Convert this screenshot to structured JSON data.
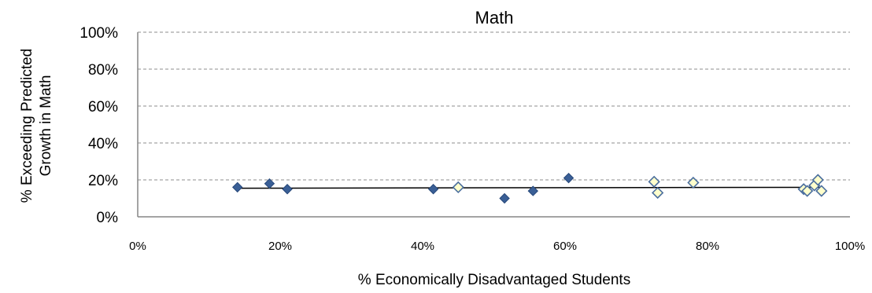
{
  "chart_data": {
    "type": "scatter",
    "title": "Math",
    "xlabel": "% Economically Disadvantaged Students",
    "ylabel_lines": [
      "% Exceeding Predicted",
      "Growth in Math"
    ],
    "xlim": [
      0,
      100
    ],
    "ylim": [
      0,
      100
    ],
    "x_ticks": [
      0,
      20,
      40,
      60,
      80,
      100
    ],
    "x_tick_labels": [
      "0%",
      "20%",
      "40%",
      "60%",
      "80%",
      "100%"
    ],
    "y_ticks": [
      0,
      20,
      40,
      60,
      80,
      100
    ],
    "y_tick_labels": [
      "0%",
      "20%",
      "40%",
      "60%",
      "80%",
      "100%"
    ],
    "grid": "horizontal-dashed",
    "colors": {
      "filled_marker": "#3a5f96",
      "filled_marker_edge": "#27487a",
      "hollow_marker_fill": "#ffffcc",
      "hollow_marker_edge": "#4a6e9e",
      "trendline": "#000000",
      "grid": "#8c8c8c"
    },
    "series": [
      {
        "marker": "filled-diamond",
        "points": [
          {
            "x": 14,
            "y": 16
          },
          {
            "x": 18.5,
            "y": 18
          },
          {
            "x": 21,
            "y": 15
          },
          {
            "x": 41.5,
            "y": 15
          },
          {
            "x": 51.5,
            "y": 10
          },
          {
            "x": 55.5,
            "y": 14
          },
          {
            "x": 60.5,
            "y": 21
          }
        ]
      },
      {
        "marker": "hollow-diamond",
        "points": [
          {
            "x": 45,
            "y": 16
          },
          {
            "x": 72.5,
            "y": 19
          },
          {
            "x": 73,
            "y": 13
          },
          {
            "x": 78,
            "y": 18.5
          },
          {
            "x": 93.5,
            "y": 15
          },
          {
            "x": 94,
            "y": 14
          },
          {
            "x": 95,
            "y": 17
          },
          {
            "x": 95.5,
            "y": 20
          },
          {
            "x": 96,
            "y": 14
          }
        ]
      }
    ],
    "trendline": {
      "x": [
        14,
        96
      ],
      "y": [
        15.5,
        16
      ]
    }
  }
}
